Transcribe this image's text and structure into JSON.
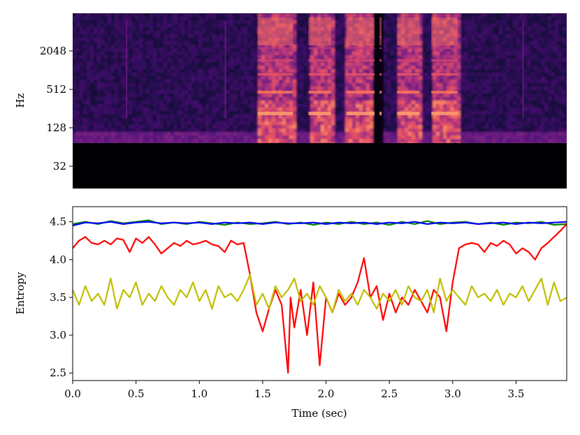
{
  "chart_data": [
    {
      "type": "heatmap",
      "title": "",
      "xlabel": "",
      "ylabel": "Hz",
      "y_scale": "log2",
      "yticks": [
        32,
        128,
        512,
        2048
      ],
      "ytick_labels": [
        "32",
        "128",
        "512",
        "2048"
      ],
      "xlim": [
        0.0,
        3.9
      ],
      "colormap": "magma",
      "description_values": {
        "voiced_segments_sec": [
          [
            1.45,
            1.75
          ],
          [
            1.85,
            2.05
          ],
          [
            2.15,
            2.45
          ],
          [
            2.55,
            2.75
          ],
          [
            2.82,
            3.05
          ]
        ],
        "dark_gap_at_sec": 2.4
      }
    },
    {
      "type": "line",
      "title": "",
      "xlabel": "Time (sec)",
      "ylabel": "Entropy",
      "xlim": [
        0.0,
        3.9
      ],
      "ylim": [
        2.4,
        4.7
      ],
      "xticks": [
        0.0,
        0.5,
        1.0,
        1.5,
        2.0,
        2.5,
        3.0,
        3.5
      ],
      "xtick_labels": [
        "0.0",
        "0.5",
        "1.0",
        "1.5",
        "2.0",
        "2.5",
        "3.0",
        "3.5"
      ],
      "yticks": [
        2.5,
        3.0,
        3.5,
        4.0,
        4.5
      ],
      "ytick_labels": [
        "2.5",
        "3.0",
        "3.5",
        "4.0",
        "4.5"
      ],
      "grid": false,
      "series": [
        {
          "color": "#008000",
          "points": [
            [
              0.0,
              4.47
            ],
            [
              0.1,
              4.5
            ],
            [
              0.2,
              4.47
            ],
            [
              0.3,
              4.51
            ],
            [
              0.4,
              4.48
            ],
            [
              0.5,
              4.5
            ],
            [
              0.6,
              4.52
            ],
            [
              0.7,
              4.47
            ],
            [
              0.8,
              4.49
            ],
            [
              0.9,
              4.47
            ],
            [
              1.0,
              4.5
            ],
            [
              1.1,
              4.48
            ],
            [
              1.2,
              4.46
            ],
            [
              1.3,
              4.49
            ],
            [
              1.4,
              4.47
            ],
            [
              1.5,
              4.48
            ],
            [
              1.6,
              4.5
            ],
            [
              1.7,
              4.47
            ],
            [
              1.8,
              4.49
            ],
            [
              1.9,
              4.46
            ],
            [
              2.0,
              4.49
            ],
            [
              2.1,
              4.47
            ],
            [
              2.2,
              4.5
            ],
            [
              2.3,
              4.47
            ],
            [
              2.4,
              4.49
            ],
            [
              2.5,
              4.46
            ],
            [
              2.6,
              4.5
            ],
            [
              2.7,
              4.47
            ],
            [
              2.8,
              4.51
            ],
            [
              2.9,
              4.47
            ],
            [
              3.0,
              4.49
            ],
            [
              3.1,
              4.5
            ],
            [
              3.2,
              4.47
            ],
            [
              3.3,
              4.49
            ],
            [
              3.4,
              4.46
            ],
            [
              3.5,
              4.49
            ],
            [
              3.6,
              4.48
            ],
            [
              3.7,
              4.5
            ],
            [
              3.8,
              4.46
            ],
            [
              3.9,
              4.47
            ]
          ]
        },
        {
          "color": "#0000ff",
          "points": [
            [
              0.0,
              4.45
            ],
            [
              0.1,
              4.49
            ],
            [
              0.2,
              4.48
            ],
            [
              0.3,
              4.5
            ],
            [
              0.4,
              4.47
            ],
            [
              0.5,
              4.49
            ],
            [
              0.6,
              4.5
            ],
            [
              0.7,
              4.48
            ],
            [
              0.8,
              4.49
            ],
            [
              0.9,
              4.48
            ],
            [
              1.0,
              4.49
            ],
            [
              1.1,
              4.47
            ],
            [
              1.2,
              4.49
            ],
            [
              1.3,
              4.48
            ],
            [
              1.4,
              4.49
            ],
            [
              1.5,
              4.47
            ],
            [
              1.6,
              4.49
            ],
            [
              1.7,
              4.48
            ],
            [
              1.8,
              4.48
            ],
            [
              1.9,
              4.49
            ],
            [
              2.0,
              4.47
            ],
            [
              2.1,
              4.49
            ],
            [
              2.2,
              4.48
            ],
            [
              2.3,
              4.49
            ],
            [
              2.4,
              4.47
            ],
            [
              2.5,
              4.49
            ],
            [
              2.6,
              4.48
            ],
            [
              2.7,
              4.5
            ],
            [
              2.8,
              4.47
            ],
            [
              2.9,
              4.49
            ],
            [
              3.0,
              4.48
            ],
            [
              3.1,
              4.49
            ],
            [
              3.2,
              4.47
            ],
            [
              3.3,
              4.48
            ],
            [
              3.4,
              4.49
            ],
            [
              3.5,
              4.47
            ],
            [
              3.6,
              4.49
            ],
            [
              3.7,
              4.48
            ],
            [
              3.8,
              4.49
            ],
            [
              3.9,
              4.5
            ]
          ]
        },
        {
          "color": "#ff0000",
          "points": [
            [
              0.0,
              4.15
            ],
            [
              0.05,
              4.25
            ],
            [
              0.1,
              4.3
            ],
            [
              0.15,
              4.22
            ],
            [
              0.2,
              4.2
            ],
            [
              0.25,
              4.25
            ],
            [
              0.3,
              4.2
            ],
            [
              0.35,
              4.28
            ],
            [
              0.4,
              4.26
            ],
            [
              0.45,
              4.1
            ],
            [
              0.5,
              4.28
            ],
            [
              0.55,
              4.22
            ],
            [
              0.6,
              4.3
            ],
            [
              0.65,
              4.2
            ],
            [
              0.7,
              4.08
            ],
            [
              0.75,
              4.15
            ],
            [
              0.8,
              4.22
            ],
            [
              0.85,
              4.18
            ],
            [
              0.9,
              4.25
            ],
            [
              0.95,
              4.2
            ],
            [
              1.0,
              4.22
            ],
            [
              1.05,
              4.25
            ],
            [
              1.1,
              4.2
            ],
            [
              1.15,
              4.18
            ],
            [
              1.2,
              4.1
            ],
            [
              1.25,
              4.25
            ],
            [
              1.3,
              4.2
            ],
            [
              1.35,
              4.22
            ],
            [
              1.4,
              3.8
            ],
            [
              1.45,
              3.3
            ],
            [
              1.5,
              3.05
            ],
            [
              1.55,
              3.35
            ],
            [
              1.6,
              3.6
            ],
            [
              1.65,
              3.4
            ],
            [
              1.7,
              2.5
            ],
            [
              1.72,
              3.5
            ],
            [
              1.75,
              3.1
            ],
            [
              1.8,
              3.6
            ],
            [
              1.85,
              3.0
            ],
            [
              1.9,
              3.7
            ],
            [
              1.95,
              2.6
            ],
            [
              2.0,
              3.5
            ],
            [
              2.05,
              3.3
            ],
            [
              2.1,
              3.55
            ],
            [
              2.15,
              3.4
            ],
            [
              2.2,
              3.5
            ],
            [
              2.25,
              3.7
            ],
            [
              2.3,
              4.02
            ],
            [
              2.35,
              3.5
            ],
            [
              2.4,
              3.65
            ],
            [
              2.45,
              3.2
            ],
            [
              2.5,
              3.55
            ],
            [
              2.55,
              3.3
            ],
            [
              2.6,
              3.5
            ],
            [
              2.65,
              3.4
            ],
            [
              2.7,
              3.6
            ],
            [
              2.75,
              3.45
            ],
            [
              2.8,
              3.3
            ],
            [
              2.85,
              3.6
            ],
            [
              2.9,
              3.5
            ],
            [
              2.95,
              3.05
            ],
            [
              3.0,
              3.7
            ],
            [
              3.05,
              4.15
            ],
            [
              3.1,
              4.2
            ],
            [
              3.15,
              4.22
            ],
            [
              3.2,
              4.2
            ],
            [
              3.25,
              4.1
            ],
            [
              3.3,
              4.22
            ],
            [
              3.35,
              4.18
            ],
            [
              3.4,
              4.25
            ],
            [
              3.45,
              4.2
            ],
            [
              3.5,
              4.08
            ],
            [
              3.55,
              4.15
            ],
            [
              3.6,
              4.1
            ],
            [
              3.65,
              4.0
            ],
            [
              3.7,
              4.15
            ],
            [
              3.75,
              4.22
            ],
            [
              3.8,
              4.3
            ],
            [
              3.85,
              4.38
            ],
            [
              3.9,
              4.47
            ]
          ]
        },
        {
          "color": "#bfbf00",
          "points": [
            [
              0.0,
              3.6
            ],
            [
              0.05,
              3.4
            ],
            [
              0.1,
              3.65
            ],
            [
              0.15,
              3.45
            ],
            [
              0.2,
              3.55
            ],
            [
              0.25,
              3.4
            ],
            [
              0.3,
              3.75
            ],
            [
              0.35,
              3.35
            ],
            [
              0.4,
              3.6
            ],
            [
              0.45,
              3.5
            ],
            [
              0.5,
              3.7
            ],
            [
              0.55,
              3.4
            ],
            [
              0.6,
              3.55
            ],
            [
              0.65,
              3.45
            ],
            [
              0.7,
              3.65
            ],
            [
              0.75,
              3.5
            ],
            [
              0.8,
              3.4
            ],
            [
              0.85,
              3.6
            ],
            [
              0.9,
              3.5
            ],
            [
              0.95,
              3.7
            ],
            [
              1.0,
              3.45
            ],
            [
              1.05,
              3.6
            ],
            [
              1.1,
              3.35
            ],
            [
              1.15,
              3.65
            ],
            [
              1.2,
              3.5
            ],
            [
              1.25,
              3.55
            ],
            [
              1.3,
              3.45
            ],
            [
              1.35,
              3.6
            ],
            [
              1.4,
              3.8
            ],
            [
              1.45,
              3.4
            ],
            [
              1.5,
              3.55
            ],
            [
              1.55,
              3.35
            ],
            [
              1.6,
              3.65
            ],
            [
              1.65,
              3.5
            ],
            [
              1.7,
              3.6
            ],
            [
              1.75,
              3.75
            ],
            [
              1.8,
              3.45
            ],
            [
              1.85,
              3.55
            ],
            [
              1.9,
              3.4
            ],
            [
              1.95,
              3.65
            ],
            [
              2.0,
              3.5
            ],
            [
              2.05,
              3.3
            ],
            [
              2.1,
              3.6
            ],
            [
              2.15,
              3.45
            ],
            [
              2.2,
              3.55
            ],
            [
              2.25,
              3.4
            ],
            [
              2.3,
              3.6
            ],
            [
              2.35,
              3.5
            ],
            [
              2.4,
              3.35
            ],
            [
              2.45,
              3.55
            ],
            [
              2.5,
              3.45
            ],
            [
              2.55,
              3.6
            ],
            [
              2.6,
              3.4
            ],
            [
              2.65,
              3.65
            ],
            [
              2.7,
              3.5
            ],
            [
              2.75,
              3.45
            ],
            [
              2.8,
              3.6
            ],
            [
              2.85,
              3.3
            ],
            [
              2.9,
              3.75
            ],
            [
              2.95,
              3.45
            ],
            [
              3.0,
              3.6
            ],
            [
              3.05,
              3.5
            ],
            [
              3.1,
              3.4
            ],
            [
              3.15,
              3.65
            ],
            [
              3.2,
              3.5
            ],
            [
              3.25,
              3.55
            ],
            [
              3.3,
              3.45
            ],
            [
              3.35,
              3.6
            ],
            [
              3.4,
              3.4
            ],
            [
              3.45,
              3.55
            ],
            [
              3.5,
              3.5
            ],
            [
              3.55,
              3.65
            ],
            [
              3.6,
              3.45
            ],
            [
              3.65,
              3.6
            ],
            [
              3.7,
              3.75
            ],
            [
              3.75,
              3.4
            ],
            [
              3.8,
              3.7
            ],
            [
              3.85,
              3.45
            ],
            [
              3.9,
              3.5
            ]
          ]
        }
      ]
    }
  ]
}
